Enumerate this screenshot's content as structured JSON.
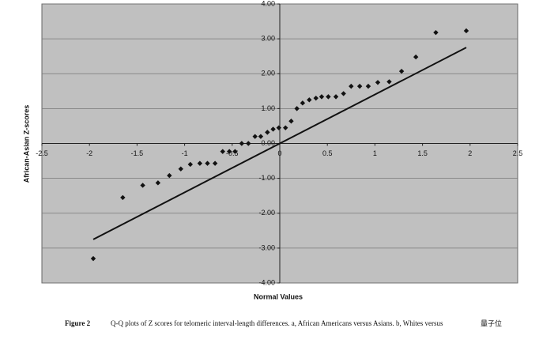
{
  "chart_data": {
    "type": "scatter",
    "x_label": "Normal Values",
    "y_label": "African-Asian Z-scores",
    "caption_label": "Figure 2",
    "caption": "Q-Q plots of Z scores for telomeric interval-length differences. a, African Americans versus Asians. b, Whites versus",
    "watermark": "量子位",
    "xlim": [
      -2.5,
      2.5
    ],
    "ylim": [
      -4,
      4
    ],
    "xticks": [
      -2.5,
      -2,
      -1.5,
      -1,
      -0.5,
      0,
      0.5,
      1,
      1.5,
      2,
      2.5
    ],
    "yticks": [
      {
        "value": 4,
        "label": "4.00"
      },
      {
        "value": 3,
        "label": "3.00"
      },
      {
        "value": 2,
        "label": "2.00"
      },
      {
        "value": 1,
        "label": "1.00"
      },
      {
        "value": 0,
        "label": "0.00"
      },
      {
        "value": -1,
        "label": "-1.00"
      },
      {
        "value": -2,
        "label": "-2.00"
      },
      {
        "value": -3,
        "label": "-3.00"
      },
      {
        "value": -4,
        "label": "-4.00"
      }
    ],
    "grid": true,
    "color": "#111111",
    "background": "#c0c0c0",
    "x": [
      -1.96,
      -1.65,
      -1.44,
      -1.28,
      -1.16,
      -1.04,
      -0.94,
      -0.84,
      -0.76,
      -0.68,
      -0.6,
      -0.53,
      -0.47,
      -0.4,
      -0.33,
      -0.26,
      -0.2,
      -0.13,
      -0.07,
      -0.01,
      0.06,
      0.12,
      0.18,
      0.24,
      0.31,
      0.38,
      0.44,
      0.51,
      0.59,
      0.67,
      0.75,
      0.84,
      0.93,
      1.03,
      1.15,
      1.28,
      1.43,
      1.64,
      1.96
    ],
    "values": [
      -3.3,
      -1.55,
      -1.2,
      -1.13,
      -0.92,
      -0.73,
      -0.6,
      -0.57,
      -0.57,
      -0.57,
      -0.23,
      -0.23,
      -0.23,
      0,
      0,
      0.2,
      0.2,
      0.32,
      0.41,
      0.45,
      0.45,
      0.64,
      1.0,
      1.16,
      1.25,
      1.3,
      1.34,
      1.34,
      1.34,
      1.43,
      1.64,
      1.64,
      1.64,
      1.75,
      1.77,
      2.07,
      2.48,
      3.18,
      3.23
    ],
    "reference_line": {
      "x": [
        -1.96,
        1.96
      ],
      "y": [
        -2.75,
        2.75
      ]
    }
  }
}
